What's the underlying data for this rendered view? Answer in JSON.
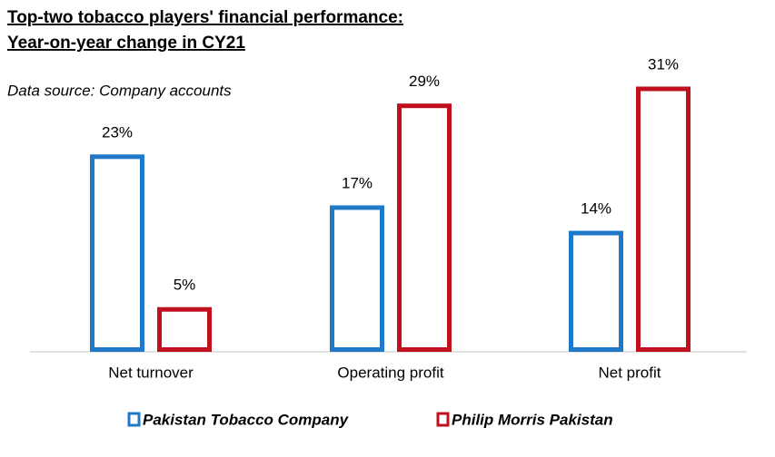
{
  "chart_data": {
    "type": "bar",
    "title": [
      "Top-two tobacco players' financial performance:",
      "Year-on-year change in CY21"
    ],
    "subtitle": "Data source: Company accounts",
    "categories": [
      "Net turnover",
      "Operating profit",
      "Net profit"
    ],
    "series": [
      {
        "name": "Pakistan Tobacco Company",
        "color": "#1f78c8",
        "values": [
          23,
          17,
          14
        ],
        "value_labels": [
          "23%",
          "17%",
          "14%"
        ]
      },
      {
        "name": "Philip Morris Pakistan",
        "color": "#c0101e",
        "values": [
          5,
          29,
          31
        ],
        "value_labels": [
          "5%",
          "29%",
          "31%"
        ]
      }
    ]
  }
}
